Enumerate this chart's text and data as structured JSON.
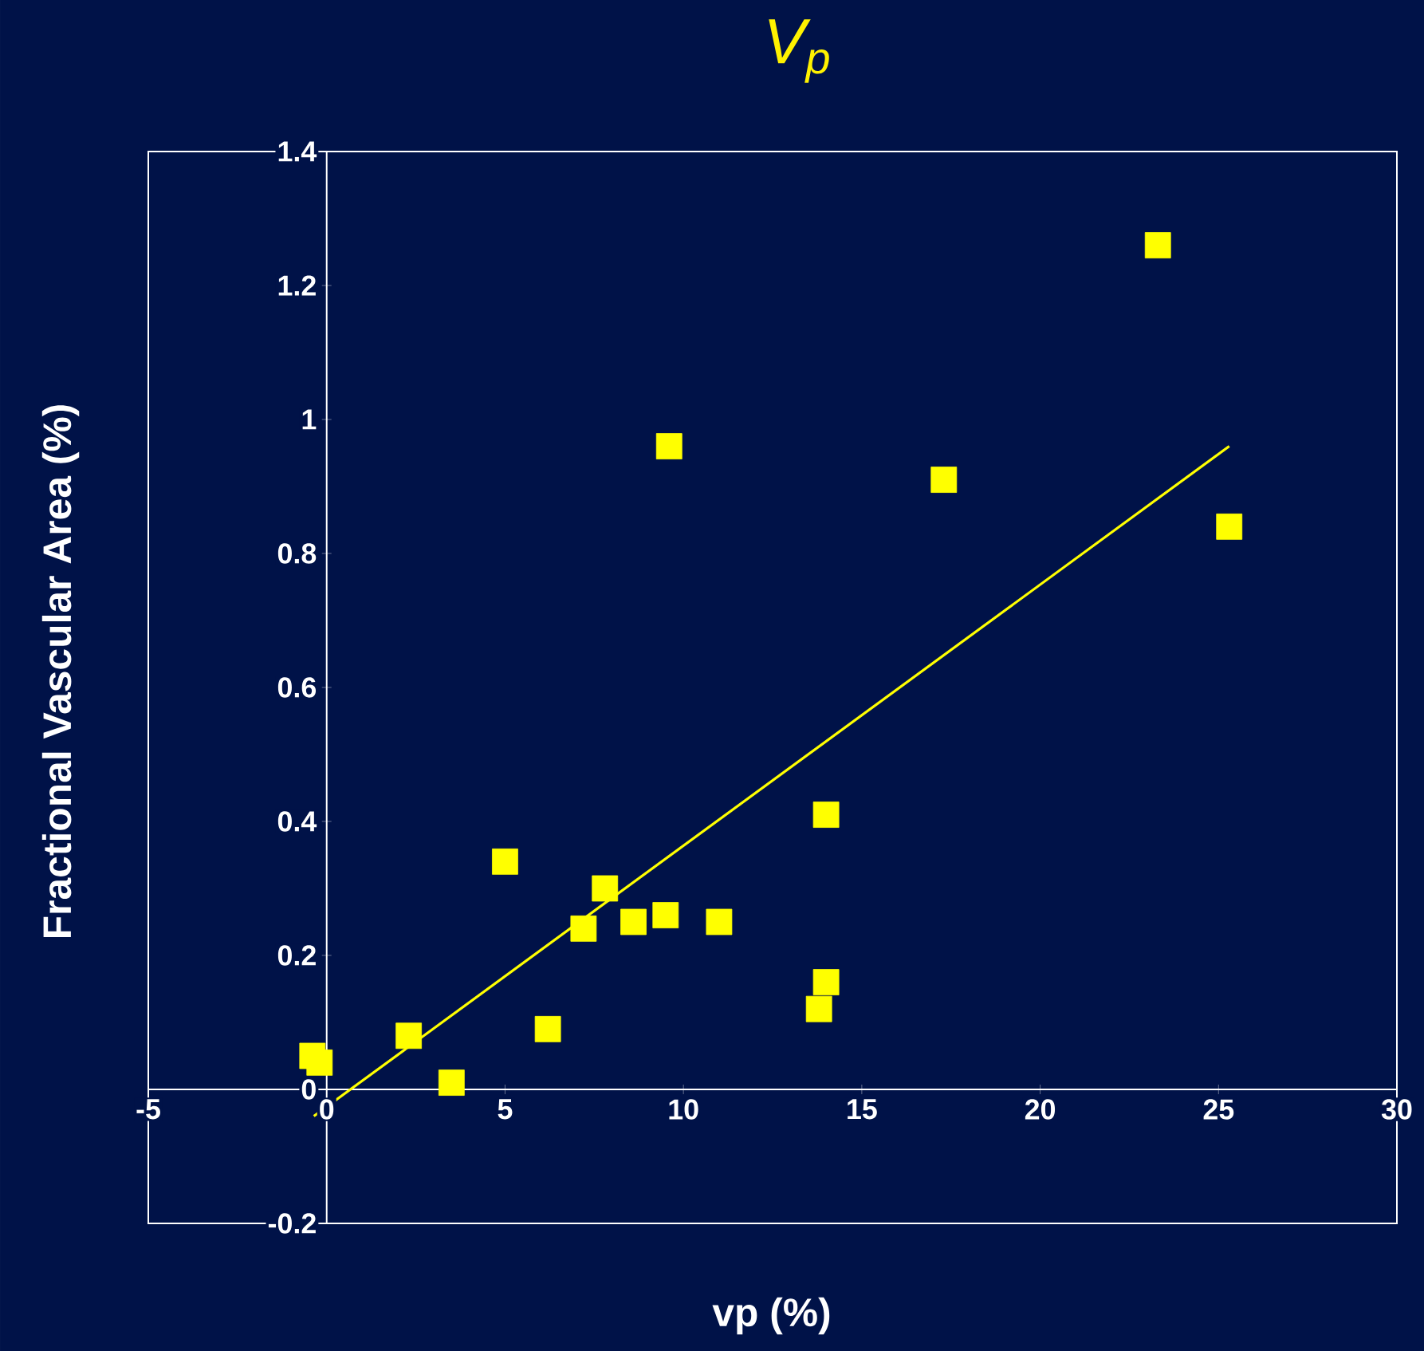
{
  "chart_data": {
    "type": "scatter",
    "title": "V$_{p}$",
    "xlabel": "vp (%)",
    "ylabel": "Fractional Vascular Area (%)",
    "xlim": [
      -5,
      30
    ],
    "xticks": [
      -5,
      0,
      5,
      10,
      15,
      20,
      25,
      30
    ],
    "ylim": [
      -0.2,
      1.4
    ],
    "yticks": [
      -0.2,
      0,
      0.2,
      0.4,
      0.6,
      0.8,
      1,
      1.2,
      1.4
    ],
    "grid": false,
    "marker": "square",
    "series": [
      {
        "type": "scatter",
        "color": "#ffff00",
        "x": [
          -0.4,
          -0.2,
          2.3,
          3.5,
          5.0,
          6.2,
          7.2,
          7.8,
          8.6,
          9.5,
          9.6,
          11.0,
          13.8,
          14.0,
          14.0,
          17.3,
          23.3,
          25.3
        ],
        "values": [
          0.05,
          0.04,
          0.08,
          0.01,
          0.34,
          0.09,
          0.24,
          0.3,
          0.25,
          0.26,
          0.96,
          0.25,
          0.12,
          0.16,
          0.41,
          0.91,
          1.26,
          0.84
        ]
      },
      {
        "type": "line",
        "color": "#ffff00",
        "marker": "none",
        "x": [
          -0.36,
          25.3
        ],
        "values": [
          -0.04,
          0.96
        ]
      }
    ]
  }
}
